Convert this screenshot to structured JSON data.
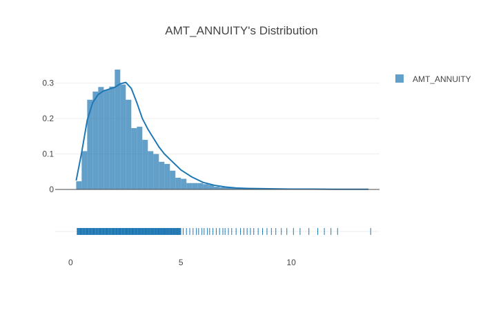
{
  "chart_data": {
    "type": "histogram",
    "title": "AMT_ANNUITY's Distribution",
    "xlabel": "",
    "ylabel": "",
    "color": "#1f77b4",
    "bar_opacity": 0.7,
    "xlim": [
      -0.7,
      14.0
    ],
    "ylim": [
      0,
      0.34
    ],
    "x_ticks": [
      0,
      5,
      10
    ],
    "y_ticks": [
      0,
      0.1,
      0.2,
      0.3
    ],
    "grid": true,
    "legend_position": "top-right",
    "series": [
      {
        "name": "AMT_ANNUITY",
        "bin_width": 0.25,
        "bin_start": 0.25,
        "density": [
          0.023,
          0.108,
          0.253,
          0.276,
          0.289,
          0.281,
          0.29,
          0.338,
          0.296,
          0.253,
          0.173,
          0.177,
          0.14,
          0.108,
          0.1,
          0.078,
          0.072,
          0.053,
          0.033,
          0.03,
          0.018,
          0.018,
          0.018,
          0.015,
          0.013,
          0.008,
          0.006,
          0.005,
          0.004,
          0.003,
          0.003,
          0.003,
          0.002,
          0.002,
          0.002,
          0.002,
          0.001,
          0.001,
          0.001,
          0.001,
          0.001,
          0.001,
          0.001,
          0.001,
          0.001,
          0.001,
          0.001,
          0.001,
          0.001,
          0.001,
          0.001,
          0.001,
          0.001
        ]
      }
    ],
    "kde": {
      "x": [
        0.25,
        0.5,
        0.75,
        1.0,
        1.25,
        1.5,
        1.75,
        2.0,
        2.25,
        2.5,
        2.75,
        3.0,
        3.25,
        3.5,
        3.75,
        4.0,
        4.25,
        4.5,
        4.75,
        5.0,
        5.5,
        6.0,
        6.5,
        7.0,
        7.5,
        8.0,
        9.0,
        10.0,
        11.0,
        12.0,
        13.5
      ],
      "y": [
        0.025,
        0.105,
        0.195,
        0.245,
        0.268,
        0.278,
        0.283,
        0.288,
        0.298,
        0.302,
        0.285,
        0.245,
        0.2,
        0.17,
        0.145,
        0.12,
        0.1,
        0.085,
        0.07,
        0.055,
        0.035,
        0.02,
        0.012,
        0.007,
        0.004,
        0.003,
        0.002,
        0.001,
        0.001,
        0.0005,
        0.0003
      ]
    },
    "rug": [
      0.3,
      0.45,
      0.6,
      0.75,
      0.9,
      1.05,
      1.2,
      1.35,
      1.5,
      1.65,
      1.8,
      1.95,
      2.1,
      2.25,
      2.4,
      2.55,
      2.7,
      2.85,
      3.0,
      3.15,
      3.3,
      3.45,
      3.6,
      3.75,
      3.9,
      4.05,
      4.2,
      4.35,
      4.5,
      4.65,
      4.8,
      4.95,
      5.1,
      5.25,
      5.4,
      5.55,
      5.7,
      5.8,
      5.95,
      6.05,
      6.2,
      6.3,
      6.45,
      6.6,
      6.75,
      6.9,
      7.0,
      7.15,
      7.3,
      7.5,
      7.7,
      7.85,
      8.0,
      8.15,
      8.3,
      8.5,
      8.7,
      8.9,
      9.1,
      9.3,
      9.55,
      9.8,
      10.1,
      10.4,
      10.8,
      11.2,
      11.5,
      11.8,
      12.1,
      13.6
    ]
  }
}
